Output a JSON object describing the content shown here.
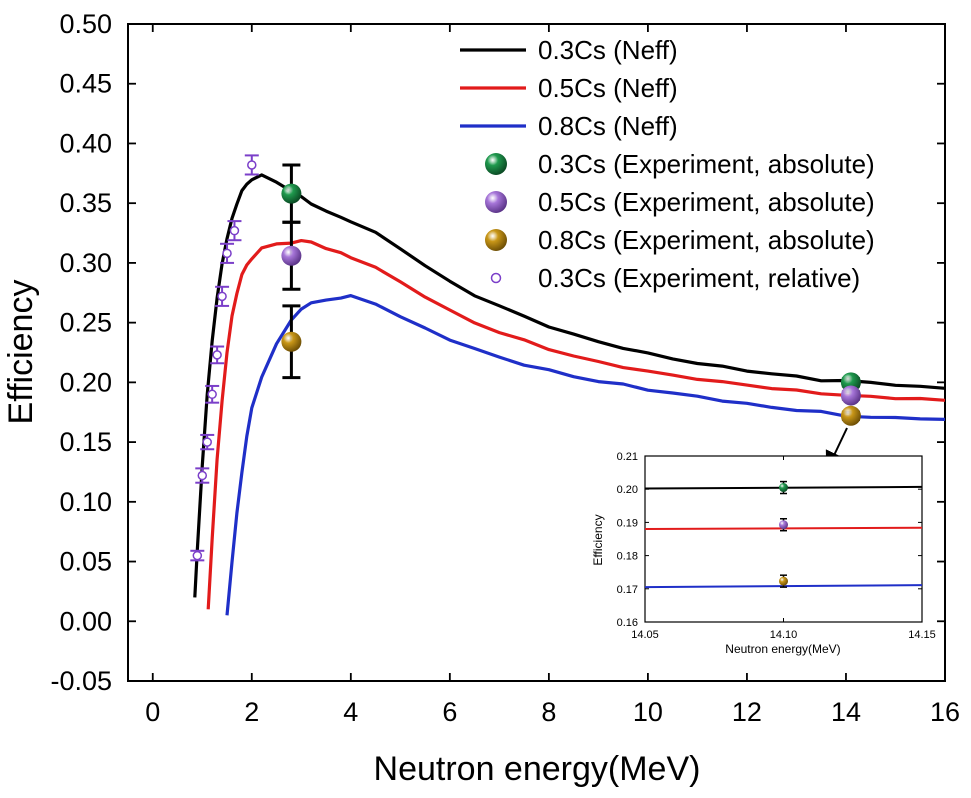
{
  "chart_data": [
    {
      "type": "line",
      "xlabel": "Neutron energy(MeV)",
      "ylabel": "Efficiency",
      "xlim": [
        -0.5,
        16
      ],
      "ylim": [
        -0.05,
        0.5
      ],
      "xticks": [
        "0",
        "2",
        "4",
        "6",
        "8",
        "10",
        "12",
        "14",
        "16"
      ],
      "yticks": [
        "-0.05",
        "0.00",
        "0.05",
        "0.10",
        "0.15",
        "0.20",
        "0.25",
        "0.30",
        "0.35",
        "0.40",
        "0.45",
        "0.50"
      ],
      "legend_position": "top-right",
      "series": [
        {
          "name": "0.3Cs (Neff)",
          "kind": "line",
          "color": "#000000",
          "x": [
            0.85,
            0.9,
            1.0,
            1.1,
            1.2,
            1.3,
            1.4,
            1.5,
            1.6,
            1.7,
            1.8,
            1.9,
            2.0,
            2.2,
            2.5,
            2.8,
            3.0,
            3.2,
            3.5,
            3.8,
            4.0,
            4.5,
            5.0,
            5.5,
            6.0,
            6.5,
            7.0,
            7.5,
            8.0,
            8.5,
            9.0,
            9.5,
            10.0,
            10.5,
            11.0,
            11.5,
            12.0,
            12.5,
            13.0,
            13.5,
            14.0,
            14.5,
            15.0,
            15.5,
            16.0
          ],
          "y": [
            0.02,
            0.06,
            0.13,
            0.19,
            0.235,
            0.27,
            0.3,
            0.32,
            0.337,
            0.35,
            0.36,
            0.366,
            0.37,
            0.373,
            0.368,
            0.36,
            0.355,
            0.35,
            0.343,
            0.338,
            0.335,
            0.325,
            0.312,
            0.298,
            0.284,
            0.273,
            0.264,
            0.255,
            0.247,
            0.24,
            0.234,
            0.229,
            0.224,
            0.22,
            0.216,
            0.213,
            0.21,
            0.207,
            0.205,
            0.202,
            0.201,
            0.2,
            0.198,
            0.196,
            0.195
          ]
        },
        {
          "name": "0.5Cs (Neff)",
          "kind": "line",
          "color": "#e21b1b",
          "x": [
            1.12,
            1.2,
            1.3,
            1.4,
            1.5,
            1.6,
            1.7,
            1.8,
            1.9,
            2.0,
            2.2,
            2.5,
            2.8,
            3.0,
            3.2,
            3.5,
            3.8,
            4.0,
            4.5,
            5.0,
            5.5,
            6.0,
            6.5,
            7.0,
            7.5,
            8.0,
            8.5,
            9.0,
            9.5,
            10.0,
            10.5,
            11.0,
            11.5,
            12.0,
            12.5,
            13.0,
            13.5,
            14.0,
            14.5,
            15.0,
            15.5,
            16.0
          ],
          "y": [
            0.01,
            0.07,
            0.135,
            0.185,
            0.225,
            0.255,
            0.275,
            0.29,
            0.298,
            0.304,
            0.312,
            0.316,
            0.317,
            0.318,
            0.318,
            0.312,
            0.308,
            0.305,
            0.296,
            0.284,
            0.272,
            0.26,
            0.25,
            0.242,
            0.235,
            0.228,
            0.222,
            0.217,
            0.213,
            0.209,
            0.206,
            0.203,
            0.2,
            0.198,
            0.195,
            0.193,
            0.191,
            0.189,
            0.188,
            0.187,
            0.186,
            0.185
          ]
        },
        {
          "name": "0.8Cs (Neff)",
          "kind": "line",
          "color": "#1f2fc8",
          "x": [
            1.5,
            1.6,
            1.7,
            1.8,
            1.9,
            2.0,
            2.2,
            2.5,
            2.8,
            3.0,
            3.2,
            3.5,
            3.8,
            4.0,
            4.5,
            5.0,
            5.5,
            6.0,
            6.5,
            7.0,
            7.5,
            8.0,
            8.5,
            9.0,
            9.5,
            10.0,
            10.5,
            11.0,
            11.5,
            12.0,
            12.5,
            13.0,
            13.5,
            14.0,
            14.5,
            15.0,
            15.5,
            16.0
          ],
          "y": [
            0.005,
            0.05,
            0.09,
            0.125,
            0.155,
            0.178,
            0.205,
            0.232,
            0.252,
            0.262,
            0.266,
            0.269,
            0.271,
            0.272,
            0.266,
            0.255,
            0.245,
            0.236,
            0.228,
            0.221,
            0.215,
            0.21,
            0.205,
            0.201,
            0.198,
            0.194,
            0.191,
            0.188,
            0.185,
            0.182,
            0.179,
            0.177,
            0.175,
            0.172,
            0.171,
            0.17,
            0.17,
            0.169
          ]
        },
        {
          "name": "0.3Cs (Experiment, absolute)",
          "kind": "ball",
          "color": "#1f9a4e",
          "x": [
            2.8,
            14.1
          ],
          "y": [
            0.358,
            0.2
          ],
          "err": [
            0.024,
            0.003
          ]
        },
        {
          "name": "0.5Cs (Experiment, absolute)",
          "kind": "ball",
          "color": "#a776d9",
          "x": [
            2.8,
            14.1
          ],
          "y": [
            0.306,
            0.189
          ],
          "err": [
            0.028,
            0.003
          ]
        },
        {
          "name": "0.8Cs (Experiment, absolute)",
          "kind": "ball",
          "color": "#c99718",
          "x": [
            2.8,
            14.1
          ],
          "y": [
            0.234,
            0.172
          ],
          "err": [
            0.03,
            0.003
          ]
        },
        {
          "name": "0.3Cs (Experiment, relative)",
          "kind": "hollow",
          "color": "#7b3fc9",
          "x": [
            0.9,
            1.0,
            1.1,
            1.2,
            1.3,
            1.4,
            1.5,
            1.65,
            2.0
          ],
          "y": [
            0.055,
            0.122,
            0.15,
            0.19,
            0.223,
            0.272,
            0.308,
            0.327,
            0.382
          ],
          "err": [
            0.004,
            0.006,
            0.006,
            0.007,
            0.007,
            0.008,
            0.008,
            0.008,
            0.008
          ]
        }
      ]
    },
    {
      "type": "line",
      "panel": "inset",
      "xlabel": "Neutron energy(MeV)",
      "ylabel": "Efficiency",
      "xlim": [
        14.05,
        14.15
      ],
      "ylim": [
        0.16,
        0.21
      ],
      "xticks": [
        "14.05",
        "14.10",
        "14.15"
      ],
      "yticks": [
        "0.16",
        "0.17",
        "0.18",
        "0.19",
        "0.20",
        "0.21"
      ],
      "series": [
        {
          "name": "0.3Cs (Neff)",
          "kind": "line",
          "color": "#000000",
          "x": [
            14.05,
            14.15
          ],
          "y": [
            0.2002,
            0.2007
          ]
        },
        {
          "name": "0.5Cs (Neff)",
          "kind": "line",
          "color": "#e21b1b",
          "x": [
            14.05,
            14.15
          ],
          "y": [
            0.188,
            0.1884
          ]
        },
        {
          "name": "0.8Cs (Neff)",
          "kind": "line",
          "color": "#1f2fc8",
          "x": [
            14.05,
            14.15
          ],
          "y": [
            0.1705,
            0.1711
          ]
        },
        {
          "name": "0.3Cs (Experiment, absolute)",
          "kind": "ball",
          "color": "#1f9a4e",
          "x": [
            14.1
          ],
          "y": [
            0.2005
          ],
          "err": [
            0.0018
          ]
        },
        {
          "name": "0.5Cs (Experiment, absolute)",
          "kind": "ball",
          "color": "#a776d9",
          "x": [
            14.1
          ],
          "y": [
            0.1893
          ],
          "err": [
            0.0018
          ]
        },
        {
          "name": "0.8Cs (Experiment, absolute)",
          "kind": "ball",
          "color": "#c99718",
          "x": [
            14.1
          ],
          "y": [
            0.1723
          ],
          "err": [
            0.0018
          ]
        }
      ]
    }
  ]
}
